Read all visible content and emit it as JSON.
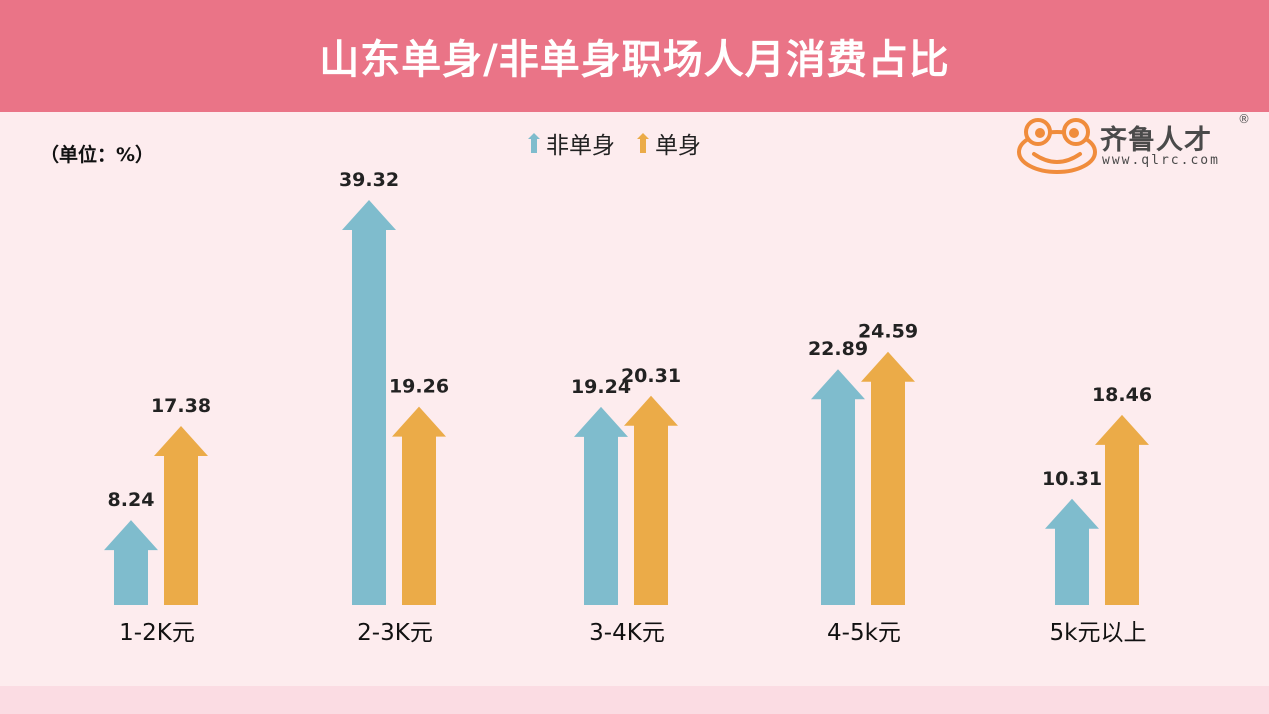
{
  "title": "山东单身/非单身职场人月消费占比",
  "unit_label": "（单位：%）",
  "logo": {
    "name": "齐鲁人才",
    "url": "www.qlrc.com",
    "registered": "®"
  },
  "colors": {
    "header_bg": "#ea7487",
    "page_bg": "#fdecee",
    "non_single": "#7fbccd",
    "single": "#ebab48",
    "logo_orange": "#f08c3c"
  },
  "chart_data": {
    "type": "bar",
    "bar_style": "upward-arrow",
    "categories": [
      "1-2K元",
      "2-3K元",
      "3-4K元",
      "4-5k元",
      "5k元以上"
    ],
    "series": [
      {
        "name": "非单身",
        "color": "#7fbccd",
        "values": [
          8.24,
          39.32,
          19.24,
          22.89,
          10.31
        ]
      },
      {
        "name": "单身",
        "color": "#ebab48",
        "values": [
          17.38,
          19.26,
          20.31,
          24.59,
          18.46
        ]
      }
    ],
    "value_labels": [
      [
        "8.24",
        "39.32",
        "19.24",
        "22.89",
        "10.31"
      ],
      [
        "17.38",
        "19.26",
        "20.31",
        "24.59",
        "18.46"
      ]
    ],
    "ylim": [
      0,
      40
    ],
    "legend_position": "top-center",
    "grid": false
  }
}
